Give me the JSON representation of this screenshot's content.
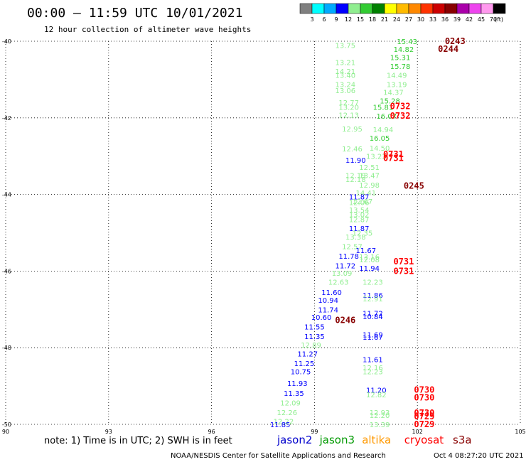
{
  "header": {
    "title": "00:00 – 11:59 UTC 10/01/2021",
    "subtitle": "12 hour collection of altimeter wave heights"
  },
  "colorbar": {
    "colors": [
      "#808080",
      "#00ffff",
      "#00aaff",
      "#0000ff",
      "#90ee90",
      "#33cc33",
      "#008000",
      "#ffff00",
      "#ffbb00",
      "#ff8800",
      "#ff3300",
      "#cc0000",
      "#880000",
      "#aa00aa",
      "#ee44ee",
      "#ff99ee",
      "#000000"
    ],
    "labels": [
      "3",
      "6",
      "9",
      "12",
      "15",
      "18",
      "21",
      "24",
      "27",
      "30",
      "33",
      "36",
      "39",
      "42",
      "45",
      "70",
      "(ft)"
    ]
  },
  "chart_data": {
    "type": "scatter",
    "xlim": [
      90,
      105
    ],
    "ylim": [
      -50,
      -40
    ],
    "xticks": [
      "90",
      "93",
      "96",
      "99",
      "102",
      "105"
    ],
    "yticks": [
      "-40",
      "-42",
      "-44",
      "-46",
      "-48",
      "-50"
    ],
    "grid": true,
    "swh_points": [
      {
        "lon": 101.7,
        "lat": -40.0,
        "v": "15.43",
        "c": "#33cc33"
      },
      {
        "lon": 99.9,
        "lat": -40.1,
        "v": "13.75",
        "c": "#90ee90"
      },
      {
        "lon": 101.6,
        "lat": -40.2,
        "v": "14.82",
        "c": "#33cc33"
      },
      {
        "lon": 101.5,
        "lat": -40.42,
        "v": "15.31",
        "c": "#33cc33"
      },
      {
        "lon": 99.9,
        "lat": -40.55,
        "v": "13.21",
        "c": "#90ee90"
      },
      {
        "lon": 101.5,
        "lat": -40.65,
        "v": "15.78",
        "c": "#33cc33"
      },
      {
        "lon": 99.9,
        "lat": -40.78,
        "v": "14.21",
        "c": "#90ee90"
      },
      {
        "lon": 99.9,
        "lat": -40.88,
        "v": "13.40",
        "c": "#90ee90"
      },
      {
        "lon": 101.4,
        "lat": -40.88,
        "v": "14.49",
        "c": "#90ee90"
      },
      {
        "lon": 99.9,
        "lat": -41.12,
        "v": "13.24",
        "c": "#90ee90"
      },
      {
        "lon": 101.4,
        "lat": -41.12,
        "v": "13.19",
        "c": "#90ee90"
      },
      {
        "lon": 99.9,
        "lat": -41.28,
        "v": "13.06",
        "c": "#90ee90"
      },
      {
        "lon": 101.3,
        "lat": -41.33,
        "v": "14.37",
        "c": "#90ee90"
      },
      {
        "lon": 101.2,
        "lat": -41.55,
        "v": "15.28",
        "c": "#33cc33"
      },
      {
        "lon": 100.0,
        "lat": -41.6,
        "v": "12.77",
        "c": "#90ee90"
      },
      {
        "lon": 100.0,
        "lat": -41.72,
        "v": "13.20",
        "c": "#90ee90"
      },
      {
        "lon": 101.0,
        "lat": -41.72,
        "v": "15.81",
        "c": "#33cc33"
      },
      {
        "lon": 100.0,
        "lat": -41.92,
        "v": "12.13",
        "c": "#90ee90"
      },
      {
        "lon": 101.1,
        "lat": -41.95,
        "v": "16.07",
        "c": "#33cc33"
      },
      {
        "lon": 100.1,
        "lat": -42.28,
        "v": "12.95",
        "c": "#90ee90"
      },
      {
        "lon": 101.0,
        "lat": -42.3,
        "v": "14.94",
        "c": "#90ee90"
      },
      {
        "lon": 100.9,
        "lat": -42.52,
        "v": "16.05",
        "c": "#33cc33"
      },
      {
        "lon": 100.1,
        "lat": -42.8,
        "v": "12.46",
        "c": "#90ee90"
      },
      {
        "lon": 100.9,
        "lat": -42.78,
        "v": "14.50",
        "c": "#90ee90"
      },
      {
        "lon": 100.8,
        "lat": -43.0,
        "v": "13.23",
        "c": "#90ee90"
      },
      {
        "lon": 100.2,
        "lat": -43.1,
        "v": "11.90",
        "c": "#0000ff"
      },
      {
        "lon": 100.6,
        "lat": -43.28,
        "v": "12.51",
        "c": "#90ee90"
      },
      {
        "lon": 100.2,
        "lat": -43.5,
        "v": "12.19",
        "c": "#90ee90"
      },
      {
        "lon": 100.6,
        "lat": -43.5,
        "v": "13.47",
        "c": "#90ee90"
      },
      {
        "lon": 100.2,
        "lat": -43.6,
        "v": "12.18",
        "c": "#90ee90"
      },
      {
        "lon": 100.6,
        "lat": -43.75,
        "v": "12.98",
        "c": "#90ee90"
      },
      {
        "lon": 100.5,
        "lat": -43.95,
        "v": "14.41",
        "c": "#90ee90"
      },
      {
        "lon": 100.3,
        "lat": -44.05,
        "v": "11.87",
        "c": "#0000ff"
      },
      {
        "lon": 100.4,
        "lat": -44.17,
        "v": "12.67",
        "c": "#90ee90"
      },
      {
        "lon": 100.3,
        "lat": -44.2,
        "v": "12.06",
        "c": "#90ee90"
      },
      {
        "lon": 100.3,
        "lat": -44.4,
        "v": "13.54",
        "c": "#90ee90"
      },
      {
        "lon": 100.3,
        "lat": -44.52,
        "v": "13.02",
        "c": "#90ee90"
      },
      {
        "lon": 100.3,
        "lat": -44.65,
        "v": "12.87",
        "c": "#90ee90"
      },
      {
        "lon": 100.3,
        "lat": -44.88,
        "v": "11.87",
        "c": "#0000ff"
      },
      {
        "lon": 100.4,
        "lat": -45.0,
        "v": "12.35",
        "c": "#90ee90"
      },
      {
        "lon": 100.2,
        "lat": -45.1,
        "v": "13.38",
        "c": "#90ee90"
      },
      {
        "lon": 100.1,
        "lat": -45.35,
        "v": "12.57",
        "c": "#90ee90"
      },
      {
        "lon": 100.5,
        "lat": -45.45,
        "v": "11.67",
        "c": "#0000ff"
      },
      {
        "lon": 100.0,
        "lat": -45.6,
        "v": "11.78",
        "c": "#0000ff"
      },
      {
        "lon": 100.6,
        "lat": -45.62,
        "v": "13.16",
        "c": "#90ee90"
      },
      {
        "lon": 100.6,
        "lat": -45.7,
        "v": "12.08",
        "c": "#90ee90"
      },
      {
        "lon": 99.9,
        "lat": -45.85,
        "v": "11.72",
        "c": "#0000ff"
      },
      {
        "lon": 100.6,
        "lat": -45.92,
        "v": "11.94",
        "c": "#0000ff"
      },
      {
        "lon": 99.8,
        "lat": -46.05,
        "v": "13.09",
        "c": "#90ee90"
      },
      {
        "lon": 99.7,
        "lat": -46.28,
        "v": "12.63",
        "c": "#90ee90"
      },
      {
        "lon": 100.7,
        "lat": -46.28,
        "v": "12.23",
        "c": "#90ee90"
      },
      {
        "lon": 99.5,
        "lat": -46.55,
        "v": "11.60",
        "c": "#0000ff"
      },
      {
        "lon": 100.7,
        "lat": -46.62,
        "v": "11.86",
        "c": "#0000ff"
      },
      {
        "lon": 99.4,
        "lat": -46.75,
        "v": "10.94",
        "c": "#0000ff"
      },
      {
        "lon": 100.7,
        "lat": -46.72,
        "v": "12.91",
        "c": "#90ee90"
      },
      {
        "lon": 99.4,
        "lat": -47.0,
        "v": "11.74",
        "c": "#0000ff"
      },
      {
        "lon": 100.7,
        "lat": -47.1,
        "v": "11.72",
        "c": "#0000ff"
      },
      {
        "lon": 99.2,
        "lat": -47.2,
        "v": "10.60",
        "c": "#0000ff"
      },
      {
        "lon": 100.7,
        "lat": -47.18,
        "v": "10.84",
        "c": "#0000ff"
      },
      {
        "lon": 99.0,
        "lat": -47.45,
        "v": "11.55",
        "c": "#0000ff"
      },
      {
        "lon": 100.7,
        "lat": -47.65,
        "v": "11.69",
        "c": "#0000ff"
      },
      {
        "lon": 99.0,
        "lat": -47.7,
        "v": "11.35",
        "c": "#0000ff"
      },
      {
        "lon": 100.7,
        "lat": -47.72,
        "v": "11.67",
        "c": "#0000ff"
      },
      {
        "lon": 98.9,
        "lat": -47.92,
        "v": "12.89",
        "c": "#90ee90"
      },
      {
        "lon": 98.8,
        "lat": -48.15,
        "v": "11.27",
        "c": "#0000ff"
      },
      {
        "lon": 100.7,
        "lat": -48.3,
        "v": "11.61",
        "c": "#0000ff"
      },
      {
        "lon": 98.7,
        "lat": -48.4,
        "v": "11.25",
        "c": "#0000ff"
      },
      {
        "lon": 100.7,
        "lat": -48.52,
        "v": "12.16",
        "c": "#90ee90"
      },
      {
        "lon": 98.6,
        "lat": -48.62,
        "v": "10.75",
        "c": "#0000ff"
      },
      {
        "lon": 100.7,
        "lat": -48.62,
        "v": "12.23",
        "c": "#90ee90"
      },
      {
        "lon": 98.5,
        "lat": -48.92,
        "v": "11.93",
        "c": "#0000ff"
      },
      {
        "lon": 100.8,
        "lat": -49.1,
        "v": "11.20",
        "c": "#0000ff"
      },
      {
        "lon": 98.4,
        "lat": -49.18,
        "v": "11.35",
        "c": "#0000ff"
      },
      {
        "lon": 100.8,
        "lat": -49.22,
        "v": "12.82",
        "c": "#90ee90"
      },
      {
        "lon": 98.3,
        "lat": -49.43,
        "v": "12.09",
        "c": "#90ee90"
      },
      {
        "lon": 98.2,
        "lat": -49.68,
        "v": "12.26",
        "c": "#90ee90"
      },
      {
        "lon": 100.9,
        "lat": -49.68,
        "v": "12.93",
        "c": "#90ee90"
      },
      {
        "lon": 100.9,
        "lat": -49.76,
        "v": "12.20",
        "c": "#90ee90"
      },
      {
        "lon": 98.1,
        "lat": -49.92,
        "v": "12.22",
        "c": "#90ee90"
      },
      {
        "lon": 98.0,
        "lat": -50.0,
        "v": "11.85",
        "c": "#0000ff"
      },
      {
        "lon": 100.9,
        "lat": -50.0,
        "v": "13.39",
        "c": "#90ee90"
      }
    ],
    "time_labels": [
      {
        "lon": 103.1,
        "lat": -40.0,
        "v": "0243",
        "c": "#880000"
      },
      {
        "lon": 102.9,
        "lat": -40.2,
        "v": "0244",
        "c": "#880000"
      },
      {
        "lon": 101.5,
        "lat": -41.7,
        "v": "0732",
        "c": "#ff0000"
      },
      {
        "lon": 101.5,
        "lat": -41.95,
        "v": "0732",
        "c": "#ff0000"
      },
      {
        "lon": 101.3,
        "lat": -42.95,
        "v": "0731",
        "c": "#ff0000"
      },
      {
        "lon": 101.3,
        "lat": -43.05,
        "v": "0731",
        "c": "#ff0000"
      },
      {
        "lon": 101.9,
        "lat": -43.78,
        "v": "0245",
        "c": "#880000"
      },
      {
        "lon": 101.6,
        "lat": -45.75,
        "v": "0731",
        "c": "#ff0000"
      },
      {
        "lon": 101.6,
        "lat": -46.0,
        "v": "0731",
        "c": "#ff0000"
      },
      {
        "lon": 99.9,
        "lat": -47.28,
        "v": "0246",
        "c": "#880000"
      },
      {
        "lon": 102.2,
        "lat": -49.1,
        "v": "0730",
        "c": "#ff0000"
      },
      {
        "lon": 102.2,
        "lat": -49.3,
        "v": "0730",
        "c": "#ff0000"
      },
      {
        "lon": 102.2,
        "lat": -49.7,
        "v": "0730",
        "c": "#ff0000"
      },
      {
        "lon": 102.2,
        "lat": -49.8,
        "v": "0729",
        "c": "#ff0000"
      },
      {
        "lon": 102.2,
        "lat": -50.0,
        "v": "0729",
        "c": "#ff0000"
      }
    ]
  },
  "note": "note: 1) Time is in UTC; 2) SWH is in feet",
  "satellites": [
    {
      "name": "jason2",
      "color": "#0000cc"
    },
    {
      "name": "jason3",
      "color": "#009900"
    },
    {
      "name": "altika",
      "color": "#ff9900"
    },
    {
      "name": "cryosat",
      "color": "#ff0000"
    },
    {
      "name": "s3a",
      "color": "#880000"
    }
  ],
  "footer": {
    "credit": "NOAA/NESDIS Center for Satellite Applications and Research",
    "timestamp": "Oct  4 08:27:20 UTC 2021"
  }
}
